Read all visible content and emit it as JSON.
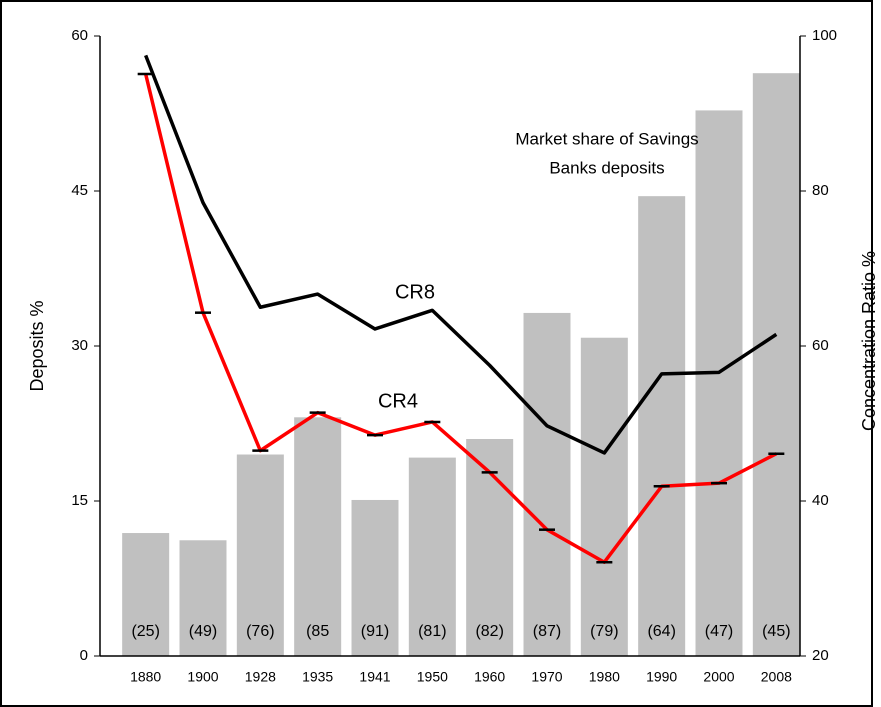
{
  "chart_data": {
    "type": "bar-line",
    "categories": [
      "1880",
      "1900",
      "1928",
      "1935",
      "1941",
      "1950",
      "1960",
      "1970",
      "1980",
      "1990",
      "2000",
      "2008"
    ],
    "bar_labels": [
      "(25)",
      "(49)",
      "(76)",
      "(85",
      "(91)",
      "(81)",
      "(82)",
      "(87)",
      "(79)",
      "(64)",
      "(47)",
      "(45)"
    ],
    "ylabel": "Deposits  %",
    "y2label": "Concentration Ratio %",
    "ylim": [
      0,
      60
    ],
    "yticks": [
      0,
      15,
      30,
      45,
      60
    ],
    "y2lim": [
      20,
      100
    ],
    "y2ticks": [
      20,
      40,
      60,
      80,
      100
    ],
    "series": [
      {
        "name": [
          "Market share of Savings",
          "Banks deposits"
        ],
        "kind": "bar",
        "axis": "y",
        "color": "#c0c0c0",
        "values": [
          11.9,
          11.2,
          19.5,
          23.1,
          15.1,
          19.2,
          21,
          33.2,
          30.8,
          44.5,
          52.8,
          56.4
        ]
      },
      {
        "name": "CR8",
        "kind": "line",
        "axis": "y2",
        "color": "#000000",
        "values": [
          97.5,
          78.5,
          65,
          66.7,
          62.2,
          64.6,
          57.5,
          49.7,
          46.2,
          56.4,
          56.6,
          61.5
        ]
      },
      {
        "name": "CR4",
        "kind": "line",
        "axis": "y2",
        "color": "#ff0000",
        "markers": true,
        "values": [
          95.1,
          64.3,
          46.5,
          51.4,
          48.5,
          50.2,
          43.7,
          36.3,
          32.1,
          41.9,
          42.3,
          46.1
        ]
      }
    ]
  }
}
